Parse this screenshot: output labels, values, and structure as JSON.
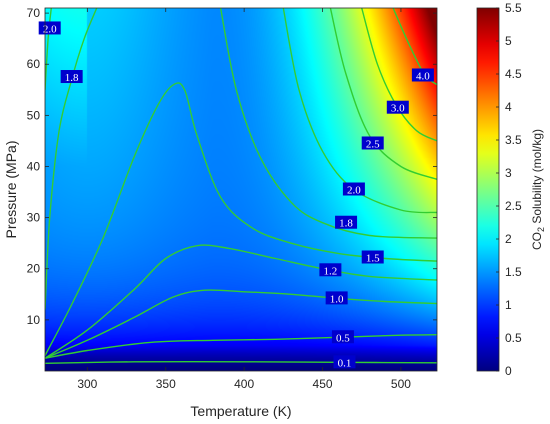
{
  "chart_data": {
    "type": "heatmap",
    "subtype": "filled-contour",
    "xlabel": "Temperature (K)",
    "ylabel": "Pressure (MPa)",
    "colorbar_label_parts": [
      "CO",
      "2",
      " Solubility (mol/kg)"
    ],
    "xlim": [
      273,
      523
    ],
    "ylim": [
      0,
      71
    ],
    "clim": [
      0,
      5.5
    ],
    "colormap": "jet",
    "contour_color": "#32cd32",
    "contour_label_background": "#0000cd",
    "grid": false,
    "x_ticks": [
      300,
      350,
      400,
      450,
      500
    ],
    "x_tick_labels": [
      "300",
      "350",
      "400",
      "450",
      "500"
    ],
    "y_ticks": [
      10,
      20,
      30,
      40,
      50,
      60,
      70
    ],
    "y_tick_labels": [
      "10",
      "20",
      "30",
      "40",
      "50",
      "60",
      "70"
    ],
    "colorbar_ticks": [
      0,
      0.5,
      1,
      1.5,
      2,
      2.5,
      3,
      3.5,
      4,
      4.5,
      5,
      5.5
    ],
    "colorbar_tick_labels": [
      "0",
      "0.5",
      "1",
      "1.5",
      "2",
      "2.5",
      "3",
      "3.5",
      "4",
      "4.5",
      "5",
      "5.5"
    ],
    "contours": [
      {
        "level": 0.1,
        "label": "0.1",
        "points": [
          [
            273,
            1.5
          ],
          [
            330,
            1.8
          ],
          [
            400,
            1.8
          ],
          [
            460,
            1.7
          ],
          [
            523,
            1.6
          ]
        ],
        "label_at": [
          464,
          1.7
        ]
      },
      {
        "level": 0.5,
        "label": "0.5",
        "points": [
          [
            273,
            2.5
          ],
          [
            300,
            4
          ],
          [
            340,
            5.6
          ],
          [
            380,
            6
          ],
          [
            420,
            6.2
          ],
          [
            460,
            6.6
          ],
          [
            500,
            7
          ],
          [
            523,
            7.1
          ]
        ],
        "label_at": [
          463,
          6.6
        ]
      },
      {
        "level": 1.0,
        "label": "1.0",
        "points": [
          [
            273,
            2.5
          ],
          [
            300,
            6
          ],
          [
            330,
            10.5
          ],
          [
            355,
            14.5
          ],
          [
            375,
            15.8
          ],
          [
            400,
            15.5
          ],
          [
            430,
            15
          ],
          [
            460,
            14.2
          ],
          [
            490,
            13.6
          ],
          [
            523,
            13.2
          ]
        ],
        "label_at": [
          459,
          14.2
        ]
      },
      {
        "level": 1.2,
        "label": "1.2",
        "points": [
          [
            273,
            2.5
          ],
          [
            300,
            8
          ],
          [
            330,
            16
          ],
          [
            350,
            22
          ],
          [
            370,
            24.5
          ],
          [
            390,
            24
          ],
          [
            420,
            22
          ],
          [
            450,
            20
          ],
          [
            480,
            18.5
          ],
          [
            523,
            17.8
          ]
        ],
        "label_at": [
          455,
          19.7
        ]
      },
      {
        "level": 1.5,
        "label": "1.5",
        "points": [
          [
            273,
            3
          ],
          [
            290,
            13
          ],
          [
            310,
            26
          ],
          [
            330,
            42
          ],
          [
            345,
            52
          ],
          [
            355,
            56
          ],
          [
            362,
            55
          ],
          [
            370,
            46
          ],
          [
            385,
            34
          ],
          [
            405,
            28
          ],
          [
            430,
            25
          ],
          [
            460,
            23
          ],
          [
            490,
            22
          ],
          [
            523,
            21.5
          ]
        ],
        "label_at": [
          482,
          22.2
        ]
      },
      {
        "level": 1.8,
        "label": "1.8",
        "points": [
          [
            273,
            12
          ],
          [
            276,
            30
          ],
          [
            282,
            47
          ],
          [
            290,
            57
          ],
          [
            298,
            65
          ],
          [
            306,
            71
          ]
        ],
        "label_at": [
          290,
          57.5
        ]
      },
      {
        "level": 1.8,
        "label": "1.8",
        "points": [
          [
            385,
            71
          ],
          [
            395,
            55
          ],
          [
            410,
            42
          ],
          [
            430,
            33
          ],
          [
            450,
            29
          ],
          [
            480,
            26.5
          ],
          [
            523,
            26
          ]
        ],
        "label_at": [
          465,
          29
        ]
      },
      {
        "level": 2.0,
        "label": "2.0",
        "points": [
          [
            273,
            55
          ],
          [
            275,
            65
          ],
          [
            277,
            71
          ]
        ],
        "label_at": [
          276,
          67
        ]
      },
      {
        "level": 2.0,
        "label": "2.0",
        "points": [
          [
            425,
            71
          ],
          [
            435,
            55
          ],
          [
            450,
            43
          ],
          [
            470,
            35.5
          ],
          [
            500,
            31.5
          ],
          [
            523,
            31
          ]
        ],
        "label_at": [
          470,
          35.5
        ]
      },
      {
        "level": 2.5,
        "label": "2.5",
        "points": [
          [
            455,
            71
          ],
          [
            465,
            58
          ],
          [
            480,
            46
          ],
          [
            500,
            40
          ],
          [
            523,
            37.5
          ]
        ],
        "label_at": [
          482,
          44.5
        ]
      },
      {
        "level": 3.0,
        "label": "3.0",
        "points": [
          [
            475,
            71
          ],
          [
            485,
            60
          ],
          [
            497,
            52
          ],
          [
            510,
            47
          ],
          [
            523,
            45
          ]
        ],
        "label_at": [
          498,
          51.5
        ]
      },
      {
        "level": 4.0,
        "label": "4.0",
        "points": [
          [
            495,
            71
          ],
          [
            505,
            64
          ],
          [
            515,
            58
          ],
          [
            523,
            56
          ]
        ],
        "label_at": [
          514,
          57.8
        ]
      }
    ]
  }
}
